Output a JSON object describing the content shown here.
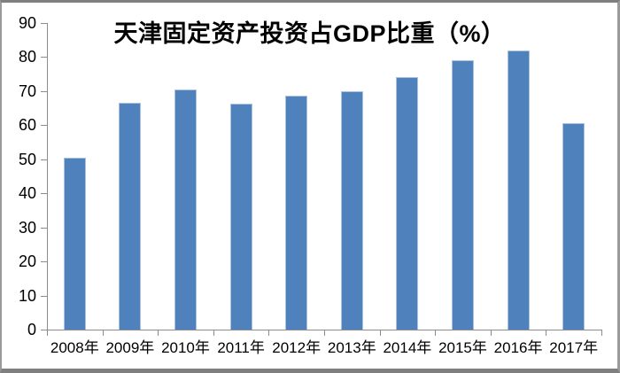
{
  "chart_data": {
    "type": "bar",
    "title": "天津固定资产投资占GDP比重（%）",
    "categories": [
      "2008年",
      "2009年",
      "2010年",
      "2011年",
      "2012年",
      "2013年",
      "2014年",
      "2015年",
      "2016年",
      "2017年"
    ],
    "values": [
      50.5,
      66.7,
      70.5,
      66.4,
      68.8,
      70.0,
      74.1,
      79.0,
      81.9,
      60.6
    ],
    "xlabel": "",
    "ylabel": "",
    "ylim": [
      0,
      90
    ],
    "yticks": [
      0,
      10,
      20,
      30,
      40,
      50,
      60,
      70,
      80,
      90
    ],
    "grid": false,
    "legend_position": "none",
    "colors": {
      "bar_fill": "#4f81bd",
      "bar_border": "#a8c2e0",
      "axis": "#8c8c8c",
      "text": "#000000",
      "background": "#ffffff",
      "frame_border": "#7f7f7f",
      "frame_border_light": "#9a9a9a"
    }
  }
}
